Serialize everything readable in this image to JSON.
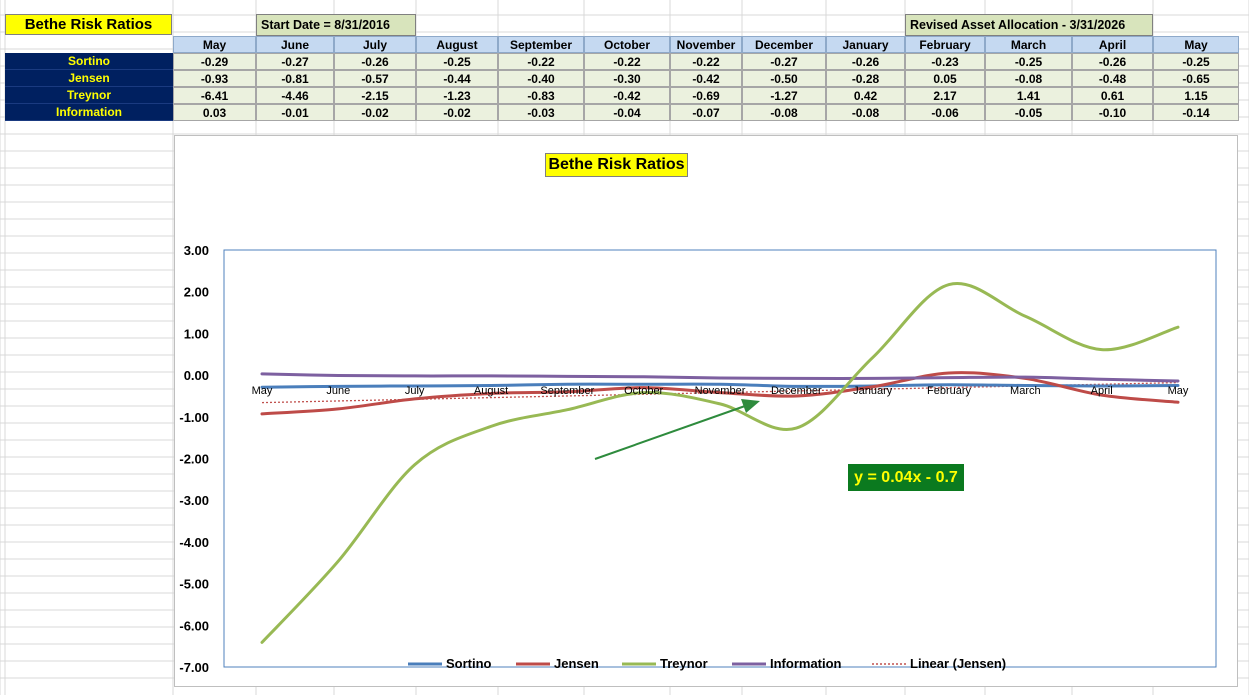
{
  "sheet": {
    "title": "Bethe Risk Ratios",
    "start_date": "Start Date = 8/31/2016",
    "revised": "Revised Asset Allocation - 3/31/2026"
  },
  "table": {
    "months": [
      "May",
      "June",
      "July",
      "August",
      "September",
      "October",
      "November",
      "December",
      "January",
      "February",
      "March",
      "April",
      "May"
    ],
    "rows": [
      {
        "label": "Sortino",
        "values": [
          "-0.29",
          "-0.27",
          "-0.26",
          "-0.25",
          "-0.22",
          "-0.22",
          "-0.22",
          "-0.27",
          "-0.26",
          "-0.23",
          "-0.25",
          "-0.26",
          "-0.25"
        ]
      },
      {
        "label": "Jensen",
        "values": [
          "-0.93",
          "-0.81",
          "-0.57",
          "-0.44",
          "-0.40",
          "-0.30",
          "-0.42",
          "-0.50",
          "-0.28",
          "0.05",
          "-0.08",
          "-0.48",
          "-0.65"
        ]
      },
      {
        "label": "Treynor",
        "values": [
          "-6.41",
          "-4.46",
          "-2.15",
          "-1.23",
          "-0.83",
          "-0.42",
          "-0.69",
          "-1.27",
          "0.42",
          "2.17",
          "1.41",
          "0.61",
          "1.15"
        ]
      },
      {
        "label": "Information",
        "values": [
          "0.03",
          "-0.01",
          "-0.02",
          "-0.02",
          "-0.03",
          "-0.04",
          "-0.07",
          "-0.08",
          "-0.08",
          "-0.06",
          "-0.05",
          "-0.10",
          "-0.14"
        ]
      }
    ]
  },
  "chart_data": {
    "type": "line",
    "title": "Bethe Risk Ratios",
    "categories": [
      "May",
      "June",
      "July",
      "August",
      "September",
      "October",
      "November",
      "December",
      "January",
      "February",
      "March",
      "April",
      "May"
    ],
    "ylim": [
      -7,
      3
    ],
    "yticks": [
      "3.00",
      "2.00",
      "1.00",
      "0.00",
      "-1.00",
      "-2.00",
      "-3.00",
      "-4.00",
      "-5.00",
      "-6.00",
      "-7.00"
    ],
    "series": [
      {
        "name": "Sortino",
        "color": "#4a7ebb",
        "values": [
          -0.29,
          -0.27,
          -0.26,
          -0.25,
          -0.22,
          -0.22,
          -0.22,
          -0.27,
          -0.26,
          -0.23,
          -0.25,
          -0.26,
          -0.25
        ]
      },
      {
        "name": "Jensen",
        "color": "#be4b48",
        "values": [
          -0.93,
          -0.81,
          -0.57,
          -0.44,
          -0.4,
          -0.3,
          -0.42,
          -0.5,
          -0.28,
          0.05,
          -0.08,
          -0.48,
          -0.65
        ]
      },
      {
        "name": "Treynor",
        "color": "#98b954",
        "values": [
          -6.41,
          -4.46,
          -2.15,
          -1.23,
          -0.83,
          -0.42,
          -0.69,
          -1.27,
          0.42,
          2.17,
          1.41,
          0.61,
          1.15
        ]
      },
      {
        "name": "Information",
        "color": "#7d60a0",
        "values": [
          0.03,
          -0.01,
          -0.02,
          -0.02,
          -0.03,
          -0.04,
          -0.07,
          -0.08,
          -0.08,
          -0.06,
          -0.05,
          -0.1,
          -0.14
        ]
      }
    ],
    "trendline": {
      "name": "Linear (Jensen)",
      "color": "#c0504d",
      "slope": 0.04,
      "intercept": -0.7
    },
    "equation": "y = 0.04x - 0.7",
    "legend": "bottom",
    "grid": false
  }
}
